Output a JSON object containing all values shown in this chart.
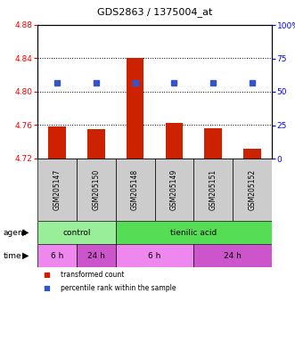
{
  "title": "GDS2863 / 1375004_at",
  "samples": [
    "GSM205147",
    "GSM205150",
    "GSM205148",
    "GSM205149",
    "GSM205151",
    "GSM205152"
  ],
  "bar_values": [
    4.758,
    4.755,
    4.84,
    4.763,
    4.756,
    4.732
  ],
  "bar_base": 4.72,
  "left_ylim": [
    4.72,
    4.88
  ],
  "left_yticks": [
    4.72,
    4.76,
    4.8,
    4.84,
    4.88
  ],
  "right_ylim": [
    0,
    100
  ],
  "right_yticks": [
    0,
    25,
    50,
    75,
    100
  ],
  "right_yticklabels": [
    "0",
    "25",
    "50",
    "75",
    "100%"
  ],
  "dotted_lines": [
    4.76,
    4.8,
    4.84
  ],
  "bar_color": "#CC2200",
  "dot_color": "#3355CC",
  "dot_percentile": 57,
  "agent_groups": [
    {
      "label": "control",
      "start": 0,
      "end": 2,
      "color": "#99EE99"
    },
    {
      "label": "tienilic acid",
      "start": 2,
      "end": 6,
      "color": "#55DD55"
    }
  ],
  "time_groups": [
    {
      "label": "6 h",
      "start": 0,
      "end": 1,
      "color": "#EE88EE"
    },
    {
      "label": "24 h",
      "start": 1,
      "end": 2,
      "color": "#CC55CC"
    },
    {
      "label": "6 h",
      "start": 2,
      "end": 4,
      "color": "#EE88EE"
    },
    {
      "label": "24 h",
      "start": 4,
      "end": 6,
      "color": "#CC55CC"
    }
  ],
  "legend_items": [
    {
      "label": "transformed count",
      "color": "#CC2200"
    },
    {
      "label": "percentile rank within the sample",
      "color": "#3355CC"
    }
  ],
  "sample_bg_color": "#CCCCCC",
  "plot_bg": "#FFFFFF"
}
